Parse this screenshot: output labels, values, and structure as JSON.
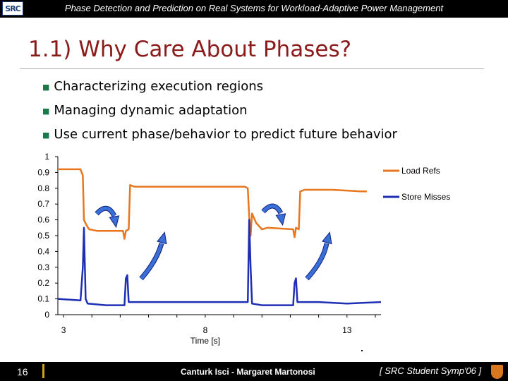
{
  "header": {
    "title": "Phase Detection and Prediction on Real Systems for Workload-Adaptive Power Management",
    "logo_text": "SRC"
  },
  "slide": {
    "title": "1.1) Why Care About Phases?",
    "bullets": [
      "Characterizing execution regions",
      "Managing dynamic adaptation",
      "Use current phase/behavior to predict future behavior"
    ]
  },
  "chart_data": {
    "type": "line",
    "xlabel": "Time [s]",
    "ylabel": "",
    "ylim": [
      0,
      1
    ],
    "yticks": [
      "0",
      "0.1",
      "0.2",
      "0.3",
      "0.4",
      "0.5",
      "0.6",
      "0.7",
      "0.8",
      "0.9",
      "1"
    ],
    "xtick_labels": [
      {
        "x": 3,
        "label": "3"
      },
      {
        "x": 8,
        "label": "8"
      },
      {
        "x": 13,
        "label": "13"
      }
    ],
    "xlim": [
      2.8,
      14.2
    ],
    "legend_position": "right",
    "series": [
      {
        "name": "Load Refs",
        "color": "#e8761e",
        "points": [
          [
            2.8,
            0.92
          ],
          [
            3.6,
            0.92
          ],
          [
            3.68,
            0.88
          ],
          [
            3.72,
            0.6
          ],
          [
            3.8,
            0.57
          ],
          [
            3.9,
            0.54
          ],
          [
            4.2,
            0.53
          ],
          [
            5.1,
            0.53
          ],
          [
            5.15,
            0.48
          ],
          [
            5.2,
            0.53
          ],
          [
            5.3,
            0.54
          ],
          [
            5.35,
            0.82
          ],
          [
            5.5,
            0.81
          ],
          [
            6.5,
            0.81
          ],
          [
            7.5,
            0.81
          ],
          [
            8.5,
            0.81
          ],
          [
            9.4,
            0.81
          ],
          [
            9.5,
            0.8
          ],
          [
            9.55,
            0.62
          ],
          [
            9.6,
            0.5
          ],
          [
            9.65,
            0.64
          ],
          [
            9.8,
            0.58
          ],
          [
            10.0,
            0.54
          ],
          [
            10.2,
            0.55
          ],
          [
            11.1,
            0.54
          ],
          [
            11.15,
            0.49
          ],
          [
            11.2,
            0.55
          ],
          [
            11.3,
            0.54
          ],
          [
            11.35,
            0.78
          ],
          [
            11.5,
            0.79
          ],
          [
            12.5,
            0.79
          ],
          [
            13.5,
            0.78
          ],
          [
            13.7,
            0.78
          ]
        ]
      },
      {
        "name": "Store Misses",
        "color": "#1f2fb4",
        "points": [
          [
            2.8,
            0.1
          ],
          [
            3.6,
            0.09
          ],
          [
            3.68,
            0.3
          ],
          [
            3.72,
            0.55
          ],
          [
            3.78,
            0.1
          ],
          [
            3.85,
            0.07
          ],
          [
            4.5,
            0.06
          ],
          [
            5.15,
            0.06
          ],
          [
            5.2,
            0.23
          ],
          [
            5.25,
            0.25
          ],
          [
            5.3,
            0.08
          ],
          [
            6.5,
            0.08
          ],
          [
            7.5,
            0.08
          ],
          [
            8.5,
            0.08
          ],
          [
            9.4,
            0.08
          ],
          [
            9.5,
            0.08
          ],
          [
            9.55,
            0.6
          ],
          [
            9.6,
            0.3
          ],
          [
            9.65,
            0.07
          ],
          [
            10.0,
            0.06
          ],
          [
            11.1,
            0.06
          ],
          [
            11.15,
            0.2
          ],
          [
            11.2,
            0.23
          ],
          [
            11.25,
            0.08
          ],
          [
            12.0,
            0.08
          ],
          [
            13.0,
            0.07
          ],
          [
            14.2,
            0.08
          ]
        ]
      }
    ]
  },
  "footer": {
    "page_number": "16",
    "authors": "Canturk Isci - Margaret Martonosi",
    "venue": "[ SRC Student Symp'06 ]"
  },
  "colors": {
    "title": "#8b1a1a",
    "bullet": "#1a7a4a",
    "arrow": "#3a6fd8",
    "accent": "#d4a017"
  }
}
